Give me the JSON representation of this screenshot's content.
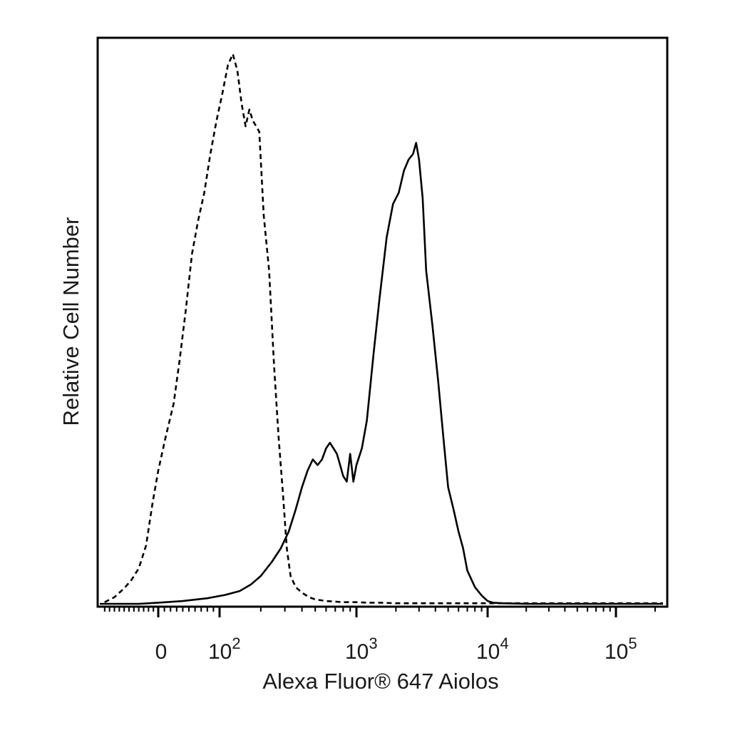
{
  "chart_data": {
    "type": "line",
    "title": "",
    "xlabel": "Alexa Fluor® 647 Aiolos",
    "ylabel": "Relative Cell Number",
    "x_scale": "biexponential",
    "xlim": [
      -120,
      230000
    ],
    "ylim": [
      0,
      100
    ],
    "grid": false,
    "legend": "none",
    "x_ticks": [
      {
        "value": 0,
        "base": "0",
        "exp": ""
      },
      {
        "value": 100,
        "base": "10",
        "exp": "2"
      },
      {
        "value": 1000,
        "base": "10",
        "exp": "3"
      },
      {
        "value": 10000,
        "base": "10",
        "exp": "4"
      },
      {
        "value": 100000,
        "base": "10",
        "exp": "5"
      }
    ],
    "series": [
      {
        "style": "dashed",
        "color": "#000000",
        "x": [
          -110,
          -90,
          -70,
          -55,
          -40,
          -25,
          -12,
          0,
          12,
          25,
          35,
          45,
          55,
          65,
          75,
          85,
          95,
          105,
          115,
          125,
          135,
          145,
          155,
          165,
          175,
          185,
          195,
          210,
          230,
          250,
          270,
          290,
          310,
          330,
          360,
          400,
          450,
          500,
          600,
          700,
          800,
          900,
          1000,
          1200,
          1500,
          2000,
          5000,
          20000,
          230000
        ],
        "y": [
          0.3,
          1.2,
          2.8,
          4.3,
          6.4,
          10.5,
          18,
          24,
          30,
          36,
          44,
          53,
          63,
          69,
          74,
          81,
          87,
          92,
          97,
          99,
          96,
          90,
          86,
          89,
          87,
          86,
          85,
          70,
          60,
          43,
          30,
          20,
          10,
          5,
          3,
          2,
          1.2,
          0.8,
          0.5,
          0.4,
          0.3,
          0.3,
          0.3,
          0.2,
          0.2,
          0.1,
          0.1,
          0.1,
          0.1
        ]
      },
      {
        "style": "solid",
        "color": "#000000",
        "x": [
          -120,
          -80,
          -40,
          0,
          40,
          80,
          110,
          140,
          170,
          200,
          240,
          280,
          320,
          360,
          400,
          440,
          480,
          520,
          560,
          600,
          640,
          680,
          720,
          760,
          800,
          850,
          900,
          950,
          1000,
          1100,
          1200,
          1350,
          1500,
          1700,
          1900,
          2100,
          2300,
          2500,
          2700,
          2850,
          3000,
          3200,
          3400,
          3800,
          4200,
          4600,
          5000,
          5500,
          6000,
          6500,
          7000,
          8000,
          9000,
          10000,
          11000,
          13000,
          20000,
          50000,
          230000
        ],
        "y": [
          0,
          0,
          0,
          0.2,
          0.5,
          1,
          1.6,
          2.3,
          3.5,
          5,
          7.5,
          10,
          13,
          17,
          21,
          24,
          26,
          25,
          26,
          28,
          29,
          28,
          27,
          25,
          23,
          22,
          27,
          22,
          25,
          28,
          33,
          45,
          55,
          66,
          72,
          74,
          78,
          80,
          81,
          83,
          80,
          73,
          60,
          50,
          40,
          30,
          21,
          17,
          13,
          10,
          6,
          3,
          1.5,
          0.5,
          0.2,
          0.1,
          0,
          0,
          0
        ]
      }
    ]
  }
}
